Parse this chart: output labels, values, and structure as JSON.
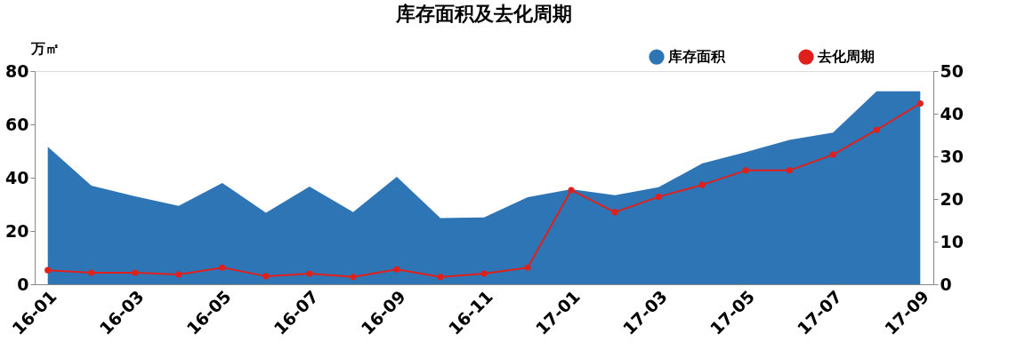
{
  "chart_data": {
    "type": "area",
    "title": "库存面积及去化周期",
    "ylabel": "万㎡",
    "categories": [
      "16-01",
      null,
      "16-03",
      null,
      "16-05",
      null,
      "16-07",
      null,
      "16-09",
      null,
      "16-11",
      null,
      "17-01",
      null,
      "17-03",
      null,
      "17-05",
      null,
      "17-07",
      null,
      "17-09"
    ],
    "series": [
      {
        "name": "库存面积",
        "color": "#2e75b6",
        "values": [
          51.6,
          37,
          33,
          29.4,
          38,
          26.8,
          36.7,
          27.1,
          40.3,
          24.8,
          25.1,
          32.7,
          35.7,
          33.4,
          36.4,
          45.3,
          49.6,
          54.2,
          56.9,
          72.4,
          72.4
        ]
      },
      {
        "name": "去化周期",
        "type": "line",
        "axis": "y2",
        "marker": "circle",
        "color": "#e0201b",
        "values": [
          3.3,
          2.7,
          2.7,
          2.3,
          3.9,
          1.9,
          2.5,
          1.7,
          3.5,
          1.7,
          2.5,
          3.9,
          22.1,
          16.9,
          20.5,
          23.3,
          26.7,
          26.7,
          30.4,
          36.2,
          42.4
        ]
      }
    ],
    "ylim": [
      0,
      80
    ],
    "yticks": [
      0,
      20,
      40,
      60,
      80
    ],
    "y2lim": [
      0,
      50
    ],
    "y2ticks": [
      0,
      10,
      20,
      30,
      40,
      50
    ],
    "grid": false,
    "legend": "top right",
    "line_style": "solid"
  }
}
